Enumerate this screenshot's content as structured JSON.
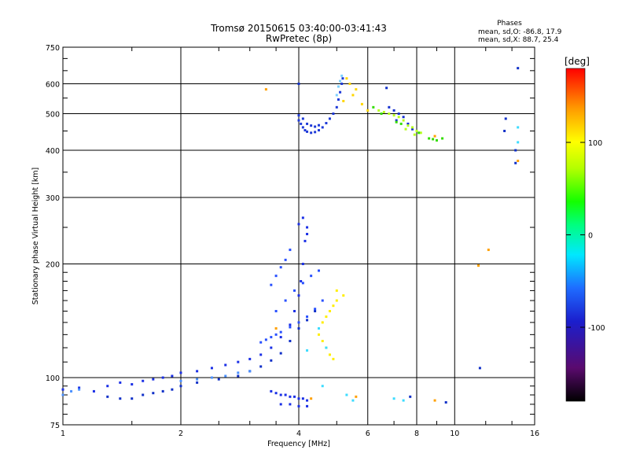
{
  "chart_data": {
    "type": "scatter",
    "title": "Tromsø 20150615 03:40:00-03:41:43",
    "subtitle": "RwPretec (8p)",
    "xlabel": "Frequency [MHz]",
    "ylabel": "Stationary phase Virtual Height [km]",
    "x_scale": "log",
    "y_scale": "log",
    "xlim": [
      1,
      16
    ],
    "ylim": [
      75,
      750
    ],
    "x_ticks": [
      {
        "value": 1,
        "label": "1"
      },
      {
        "value": 2,
        "label": "2"
      },
      {
        "value": 4,
        "label": "4"
      },
      {
        "value": 6,
        "label": "6"
      },
      {
        "value": 8,
        "label": "8"
      },
      {
        "value": 10,
        "label": "10"
      },
      {
        "value": 16,
        "label": "16"
      }
    ],
    "y_ticks": [
      {
        "value": 75,
        "label": "75"
      },
      {
        "value": 100,
        "label": "100"
      },
      {
        "value": 200,
        "label": "200"
      },
      {
        "value": 300,
        "label": "300"
      },
      {
        "value": 400,
        "label": "400"
      },
      {
        "value": 500,
        "label": "500"
      },
      {
        "value": 600,
        "label": "600"
      },
      {
        "value": 750,
        "label": "750"
      }
    ],
    "grid": true,
    "stats": {
      "heading": "Phases",
      "line_o": "mean, sd,O: -86.8, 17.9",
      "line_x": "mean, sd,X:  88.7, 25.4"
    },
    "colorbar": {
      "label": "[deg]",
      "range": [
        -180,
        180
      ],
      "ticks": [
        {
          "value": 100,
          "label": "100"
        },
        {
          "value": 0,
          "label": "0"
        },
        {
          "value": -100,
          "label": "-100"
        }
      ]
    },
    "series": [
      {
        "color": "#1a2fe6",
        "points": [
          [
            1.0,
            93
          ],
          [
            1.1,
            94
          ],
          [
            1.2,
            92
          ],
          [
            1.3,
            95
          ],
          [
            1.4,
            97
          ],
          [
            1.5,
            96
          ],
          [
            1.6,
            98
          ],
          [
            1.7,
            99
          ],
          [
            1.8,
            100
          ],
          [
            1.9,
            101
          ],
          [
            2.0,
            103
          ],
          [
            2.2,
            104
          ],
          [
            2.4,
            106
          ],
          [
            2.6,
            108
          ],
          [
            2.8,
            110
          ],
          [
            3.0,
            112
          ],
          [
            3.2,
            115
          ],
          [
            3.4,
            120
          ],
          [
            3.6,
            128
          ],
          [
            3.8,
            138
          ],
          [
            3.9,
            150
          ],
          [
            4.0,
            165
          ],
          [
            4.05,
            180
          ],
          [
            4.1,
            200
          ],
          [
            4.15,
            230
          ],
          [
            4.2,
            250
          ],
          [
            4.0,
            255
          ],
          [
            4.1,
            265
          ],
          [
            4.2,
            240
          ]
        ]
      },
      {
        "color": "#1030c8",
        "points": [
          [
            1.3,
            89
          ],
          [
            1.4,
            88
          ],
          [
            1.5,
            88
          ],
          [
            1.6,
            90
          ],
          [
            1.7,
            91
          ],
          [
            1.8,
            92
          ],
          [
            1.9,
            93
          ],
          [
            2.0,
            95
          ],
          [
            2.2,
            97
          ],
          [
            2.5,
            99
          ],
          [
            2.8,
            101
          ],
          [
            3.0,
            104
          ],
          [
            3.2,
            107
          ],
          [
            3.4,
            111
          ],
          [
            3.6,
            116
          ],
          [
            3.8,
            125
          ],
          [
            4.0,
            135
          ],
          [
            4.2,
            142
          ],
          [
            4.4,
            150
          ]
        ]
      },
      {
        "color": "#2850ff",
        "points": [
          [
            3.2,
            124
          ],
          [
            3.3,
            126
          ],
          [
            3.4,
            128
          ],
          [
            3.5,
            130
          ],
          [
            3.6,
            132
          ],
          [
            3.8,
            136
          ],
          [
            4.0,
            140
          ],
          [
            4.2,
            145
          ],
          [
            4.4,
            152
          ],
          [
            4.6,
            160
          ],
          [
            3.5,
            150
          ],
          [
            3.7,
            160
          ],
          [
            3.9,
            170
          ],
          [
            4.1,
            178
          ],
          [
            4.3,
            186
          ],
          [
            4.5,
            192
          ],
          [
            3.4,
            176
          ],
          [
            3.5,
            186
          ],
          [
            3.6,
            196
          ],
          [
            3.7,
            205
          ],
          [
            3.8,
            218
          ]
        ]
      },
      {
        "color": "#1a2fe6",
        "points": [
          [
            3.4,
            92
          ],
          [
            3.5,
            91
          ],
          [
            3.6,
            90
          ],
          [
            3.7,
            90
          ],
          [
            3.8,
            89
          ],
          [
            3.9,
            89
          ],
          [
            4.0,
            88
          ],
          [
            4.1,
            88
          ],
          [
            4.2,
            87
          ],
          [
            3.6,
            85
          ],
          [
            3.8,
            85
          ],
          [
            4.0,
            84
          ],
          [
            4.2,
            84
          ]
        ]
      },
      {
        "color": "#4a90ff",
        "points": [
          [
            1.0,
            90
          ],
          [
            1.05,
            92
          ],
          [
            1.1,
            93
          ],
          [
            2.0,
            98
          ],
          [
            2.2,
            99
          ],
          [
            2.4,
            100
          ],
          [
            2.6,
            101
          ],
          [
            2.8,
            103
          ],
          [
            3.0,
            104
          ]
        ]
      },
      {
        "color": "#1e3ad8",
        "points": [
          [
            4.0,
            480
          ],
          [
            4.05,
            470
          ],
          [
            4.1,
            460
          ],
          [
            4.15,
            452
          ],
          [
            4.2,
            448
          ],
          [
            4.3,
            445
          ],
          [
            4.4,
            447
          ],
          [
            4.5,
            452
          ],
          [
            4.6,
            460
          ],
          [
            4.7,
            472
          ],
          [
            4.8,
            485
          ],
          [
            4.9,
            500
          ],
          [
            5.0,
            520
          ],
          [
            5.05,
            545
          ],
          [
            5.1,
            570
          ],
          [
            5.15,
            600
          ],
          [
            5.18,
            620
          ],
          [
            4.0,
            495
          ],
          [
            4.1,
            485
          ],
          [
            4.2,
            470
          ],
          [
            4.3,
            465
          ],
          [
            4.4,
            462
          ],
          [
            4.5,
            466
          ]
        ]
      },
      {
        "color": "#7acfff",
        "points": [
          [
            5.0,
            560
          ],
          [
            5.05,
            590
          ],
          [
            5.1,
            610
          ],
          [
            5.15,
            630
          ]
        ]
      },
      {
        "color": "#1530d0",
        "points": [
          [
            7.0,
            510
          ],
          [
            7.2,
            500
          ],
          [
            7.4,
            490
          ],
          [
            7.6,
            470
          ],
          [
            7.8,
            455
          ],
          [
            6.8,
            520
          ],
          [
            7.1,
            480
          ]
        ]
      },
      {
        "color": "#ffd600",
        "points": [
          [
            5.3,
            620
          ],
          [
            5.4,
            600
          ],
          [
            5.5,
            560
          ],
          [
            5.2,
            540
          ],
          [
            5.6,
            580
          ],
          [
            5.8,
            530
          ],
          [
            6.0,
            510
          ]
        ]
      },
      {
        "color": "#b8ff20",
        "points": [
          [
            6.4,
            510
          ],
          [
            6.6,
            505
          ],
          [
            6.8,
            500
          ],
          [
            7.0,
            495
          ],
          [
            7.2,
            490
          ],
          [
            7.4,
            480
          ],
          [
            7.6,
            465
          ],
          [
            7.8,
            460
          ],
          [
            8.0,
            450
          ],
          [
            8.2,
            445
          ],
          [
            7.5,
            455
          ],
          [
            7.9,
            440
          ]
        ]
      },
      {
        "color": "#33dd00",
        "points": [
          [
            6.2,
            520
          ],
          [
            6.5,
            500
          ],
          [
            7.1,
            475
          ],
          [
            7.3,
            470
          ],
          [
            8.1,
            445
          ],
          [
            8.6,
            430
          ],
          [
            8.8,
            428
          ],
          [
            9.0,
            425
          ],
          [
            9.3,
            430
          ]
        ]
      },
      {
        "color": "#ffee00",
        "points": [
          [
            4.6,
            140
          ],
          [
            4.7,
            145
          ],
          [
            4.8,
            150
          ],
          [
            4.9,
            155
          ],
          [
            5.0,
            160
          ],
          [
            4.5,
            130
          ],
          [
            4.6,
            125
          ],
          [
            4.7,
            120
          ],
          [
            4.8,
            115
          ],
          [
            4.9,
            112
          ],
          [
            5.0,
            170
          ],
          [
            5.2,
            165
          ]
        ]
      },
      {
        "color": "#ffa000",
        "points": [
          [
            3.3,
            580
          ],
          [
            3.5,
            135
          ],
          [
            4.3,
            88
          ],
          [
            5.6,
            89
          ],
          [
            8.9,
            436
          ],
          [
            8.9,
            87
          ],
          [
            11.5,
            198
          ],
          [
            12.2,
            218
          ],
          [
            14.5,
            375
          ]
        ]
      },
      {
        "color": "#3cdcff",
        "points": [
          [
            4.5,
            135
          ],
          [
            4.7,
            120
          ],
          [
            4.2,
            118
          ],
          [
            4.6,
            95
          ],
          [
            5.3,
            90
          ],
          [
            5.5,
            87
          ],
          [
            7.0,
            88
          ],
          [
            7.4,
            87
          ],
          [
            14.5,
            460
          ],
          [
            14.5,
            420
          ]
        ]
      },
      {
        "color": "#1030c8",
        "points": [
          [
            4.0,
            600
          ],
          [
            6.7,
            585
          ],
          [
            13.5,
            485
          ],
          [
            13.4,
            450
          ],
          [
            14.5,
            660
          ],
          [
            11.6,
            106
          ],
          [
            14.3,
            400
          ],
          [
            9.5,
            86
          ],
          [
            7.7,
            89
          ],
          [
            14.3,
            370
          ]
        ]
      }
    ]
  }
}
